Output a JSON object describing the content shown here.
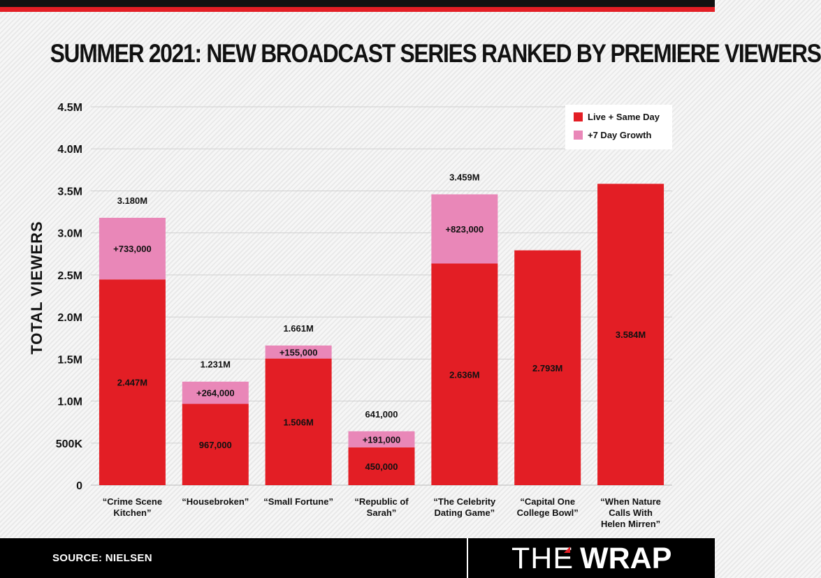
{
  "title": "SUMMER 2021: NEW BROADCAST SERIES RANKED BY PREMIERE VIEWERS",
  "source": "SOURCE: NIELSEN",
  "logo": {
    "part1": "THE",
    "part2": "WRAP"
  },
  "colors": {
    "accent": "#e31e25",
    "growth": "#e987b8",
    "dark": "#111111"
  },
  "chart_data": {
    "type": "bar",
    "stacked": true,
    "ylabel": "TOTAL VIEWERS",
    "ylim": [
      0,
      4500000
    ],
    "yticks": [
      0,
      500000,
      1000000,
      1500000,
      2000000,
      2500000,
      3000000,
      3500000,
      4000000,
      4500000
    ],
    "ytick_labels": [
      "0",
      "500K",
      "1.0M",
      "1.5M",
      "2.0M",
      "2.5M",
      "3.0M",
      "3.5M",
      "4.0M",
      "4.5M"
    ],
    "grid": true,
    "legend_position": "top-right",
    "categories": [
      [
        "“Crime Scene",
        "Kitchen”"
      ],
      [
        "“Housebroken”"
      ],
      [
        "“Small Fortune”"
      ],
      [
        "“Republic of",
        "Sarah”"
      ],
      [
        "“The Celebrity",
        "Dating Game”"
      ],
      [
        "“Capital One",
        "College Bowl”"
      ],
      [
        "“When Nature",
        "Calls With",
        "Helen Mirren”"
      ]
    ],
    "series": [
      {
        "name": "Live + Same Day",
        "color": "#e31e25",
        "values": [
          2447000,
          967000,
          1506000,
          450000,
          2636000,
          2793000,
          3584000
        ],
        "labels": [
          "2.447M",
          "967,000",
          "1.506M",
          "450,000",
          "2.636M",
          "2.793M",
          "3.584M"
        ]
      },
      {
        "name": "+7 Day Growth",
        "color": "#e987b8",
        "values": [
          733000,
          264000,
          155000,
          191000,
          823000,
          null,
          null
        ],
        "labels": [
          "+733,000",
          "+264,000",
          "+155,000",
          "+191,000",
          "+823,000",
          null,
          null
        ]
      }
    ],
    "totals": [
      "3.180M",
      "1.231M",
      "1.661M",
      "641,000",
      "3.459M",
      null,
      null
    ]
  }
}
